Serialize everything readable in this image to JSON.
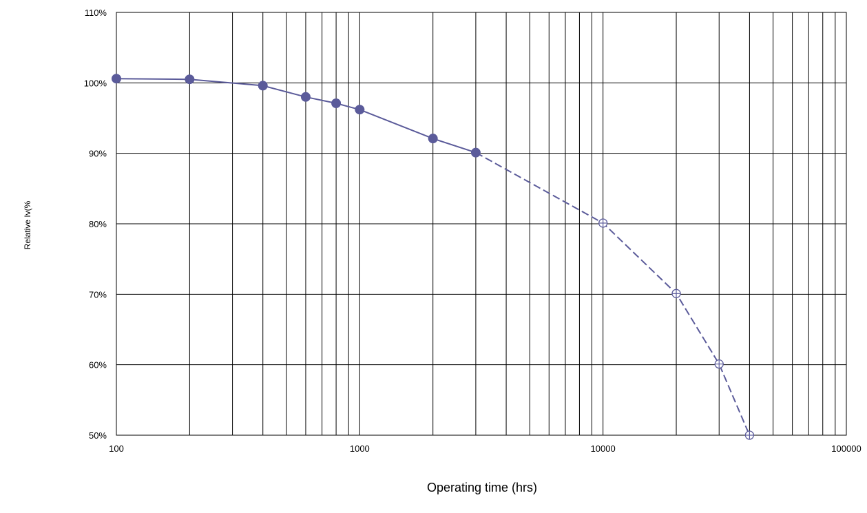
{
  "chart_data": {
    "type": "line",
    "xscale": "log",
    "xlim": [
      100,
      100000
    ],
    "ylim": [
      50,
      110
    ],
    "grid": "on",
    "xlabel": "Operating time (hrs)",
    "ylabel": "Relative Iv(%",
    "x_ticks": [
      "100",
      "1000",
      "10000",
      "100000"
    ],
    "y_ticks": [
      "50%",
      "60%",
      "70%",
      "80%",
      "90%",
      "100%",
      "110%"
    ],
    "series": [
      {
        "style": "measured",
        "color": "#5b5b9a",
        "line": "solid",
        "marker": "filled-circle",
        "x": [
          100,
          200,
          400,
          600,
          800,
          1000,
          2000,
          3000
        ],
        "y": [
          100.6,
          100.5,
          99.6,
          98.0,
          97.1,
          96.2,
          92.1,
          90.1
        ]
      },
      {
        "style": "projected",
        "color": "#5b5b9a",
        "line": "dashed",
        "marker": "open-circle-cross",
        "x": [
          3000,
          10000,
          20000,
          30000,
          40000
        ],
        "y": [
          90.1,
          80.1,
          70.1,
          60.1,
          50.0
        ]
      }
    ]
  }
}
